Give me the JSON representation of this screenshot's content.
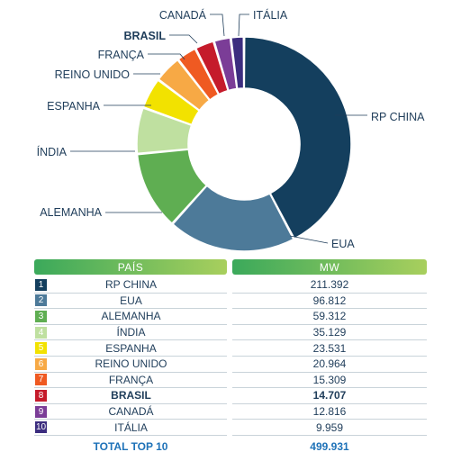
{
  "chart_data": {
    "type": "pie",
    "donut": true,
    "categories": [
      "RP CHINA",
      "EUA",
      "ALEMANHA",
      "ÍNDIA",
      "ESPANHA",
      "REINO UNIDO",
      "FRANÇA",
      "BRASIL",
      "CANADÁ",
      "ITÁLIA"
    ],
    "values": [
      211392,
      96812,
      59312,
      35129,
      23531,
      20964,
      15309,
      14707,
      12816,
      9959
    ],
    "colors": [
      "#143f5e",
      "#4d7a99",
      "#5fae52",
      "#bfe0a0",
      "#f2e200",
      "#f7a945",
      "#ef5a22",
      "#c51b2b",
      "#7b3d97",
      "#3c2d7f"
    ],
    "highlight": "BRASIL"
  },
  "table": {
    "header_country": "PAÍS",
    "header_value": "MW",
    "rows": [
      {
        "rank": "1",
        "country": "RP CHINA",
        "value": "211.392",
        "color": "#143f5e"
      },
      {
        "rank": "2",
        "country": "EUA",
        "value": "96.812",
        "color": "#4d7a99"
      },
      {
        "rank": "3",
        "country": "ALEMANHA",
        "value": "59.312",
        "color": "#5fae52"
      },
      {
        "rank": "4",
        "country": "ÍNDIA",
        "value": "35.129",
        "color": "#bfe0a0"
      },
      {
        "rank": "5",
        "country": "ESPANHA",
        "value": "23.531",
        "color": "#f2e200"
      },
      {
        "rank": "6",
        "country": "REINO UNIDO",
        "value": "20.964",
        "color": "#f7a945"
      },
      {
        "rank": "7",
        "country": "FRANÇA",
        "value": "15.309",
        "color": "#ef5a22"
      },
      {
        "rank": "8",
        "country": "BRASIL",
        "value": "14.707",
        "color": "#c51b2b"
      },
      {
        "rank": "9",
        "country": "CANADÁ",
        "value": "12.816",
        "color": "#7b3d97"
      },
      {
        "rank": "10",
        "country": "ITÁLIA",
        "value": "9.959",
        "color": "#3c2d7f"
      }
    ],
    "total_label": "TOTAL TOP 10",
    "total_value": "499.931"
  }
}
